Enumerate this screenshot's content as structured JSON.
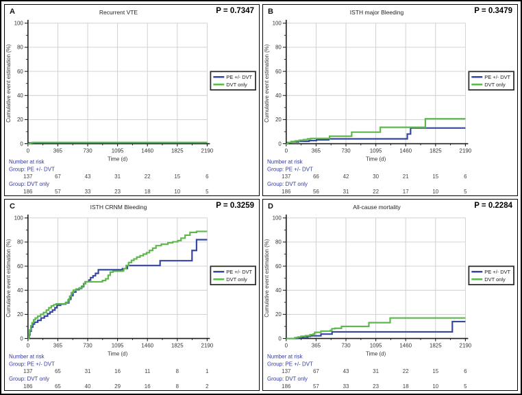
{
  "shared": {
    "number_at_risk_label": "Number at risk",
    "colors": {
      "pe_dvt_blue": "#3646a0",
      "dvt_only_green": "#5cb84b",
      "grid": "#cccccc",
      "axis": "#1a1a1a",
      "tick_text": "#333333",
      "risk_label_navy": "#333a9e",
      "risk_value": "#444444",
      "legend_border": "#2e2e2e"
    },
    "legend_labels": [
      "PE +/- DVT",
      "DVT only"
    ]
  },
  "chart_data": [
    {
      "type": "line",
      "step": true,
      "letter": "A",
      "title": "Recurrent VTE",
      "p_value": "P = 0.7347",
      "xlabel": "Time (d)",
      "ylabel": "Cumulative event estimation (%)",
      "xlim": [
        0,
        2190
      ],
      "ylim": [
        0,
        100
      ],
      "xticks": [
        0,
        365,
        730,
        1095,
        1460,
        1825,
        2190
      ],
      "yticks": [
        0,
        20,
        40,
        60,
        80,
        100
      ],
      "legend_position": "right",
      "grid": true,
      "series": [
        {
          "name": "PE +/- DVT",
          "color": "#3646a0",
          "step_points": [
            [
              0,
              0
            ],
            [
              15,
              0.7
            ],
            [
              2190,
              0.7
            ]
          ]
        },
        {
          "name": "DVT only",
          "color": "#5cb84b",
          "step_points": [
            [
              0,
              0
            ],
            [
              30,
              0.6
            ],
            [
              55,
              1.1
            ],
            [
              2190,
              1.1
            ]
          ]
        }
      ],
      "number_at_risk": [
        {
          "group": "Group: PE +/- DVT",
          "counts": [
            137,
            67,
            43,
            31,
            22,
            15,
            6
          ]
        },
        {
          "group": "Group: DVT only",
          "counts": [
            186,
            57,
            33,
            23,
            18,
            10,
            5
          ]
        }
      ]
    },
    {
      "type": "line",
      "step": true,
      "letter": "B",
      "title": "ISTH major Bleeding",
      "p_value": "P = 0.3479",
      "xlabel": "Time (d)",
      "ylabel": "Cumulative event estimation (%)",
      "xlim": [
        0,
        2190
      ],
      "ylim": [
        0,
        100
      ],
      "xticks": [
        0,
        365,
        730,
        1095,
        1460,
        1825,
        2190
      ],
      "yticks": [
        0,
        20,
        40,
        60,
        80,
        100
      ],
      "legend_position": "right",
      "grid": true,
      "series": [
        {
          "name": "PE +/- DVT",
          "color": "#3646a0",
          "step_points": [
            [
              0,
              0
            ],
            [
              15,
              0.8
            ],
            [
              60,
              1.5
            ],
            [
              150,
              2.0
            ],
            [
              280,
              2.6
            ],
            [
              370,
              3.2
            ],
            [
              520,
              4.0
            ],
            [
              1480,
              8.0
            ],
            [
              1520,
              13.0
            ],
            [
              2190,
              13.0
            ]
          ]
        },
        {
          "name": "DVT only",
          "color": "#5cb84b",
          "step_points": [
            [
              0,
              0
            ],
            [
              20,
              1.0
            ],
            [
              60,
              1.8
            ],
            [
              110,
              2.3
            ],
            [
              160,
              2.9
            ],
            [
              210,
              3.4
            ],
            [
              260,
              4.0
            ],
            [
              300,
              4.4
            ],
            [
              530,
              6.2
            ],
            [
              800,
              9.6
            ],
            [
              1150,
              13.6
            ],
            [
              1700,
              20.7
            ],
            [
              2190,
              20.7
            ]
          ]
        }
      ],
      "number_at_risk": [
        {
          "group": "Group: PE +/- DVT",
          "counts": [
            137,
            66,
            42,
            30,
            21,
            15,
            6
          ]
        },
        {
          "group": "Group: DVT only",
          "counts": [
            186,
            56,
            31,
            22,
            17,
            10,
            5
          ]
        }
      ]
    },
    {
      "type": "line",
      "step": true,
      "letter": "C",
      "title": "ISTH CRNM Bleeding",
      "p_value": "P = 0.3259",
      "xlabel": "Time (d)",
      "ylabel": "Cumulative event estimation (%)",
      "xlim": [
        0,
        2190
      ],
      "ylim": [
        0,
        100
      ],
      "xticks": [
        0,
        365,
        730,
        1095,
        1460,
        1825,
        2190
      ],
      "yticks": [
        0,
        20,
        40,
        60,
        80,
        100
      ],
      "legend_position": "right",
      "grid": true,
      "series": [
        {
          "name": "PE +/- DVT",
          "color": "#3646a0",
          "step_points": [
            [
              0,
              0
            ],
            [
              15,
              3
            ],
            [
              25,
              6
            ],
            [
              40,
              9.5
            ],
            [
              60,
              12
            ],
            [
              80,
              13.5
            ],
            [
              120,
              15
            ],
            [
              160,
              17
            ],
            [
              200,
              18.5
            ],
            [
              240,
              20.5
            ],
            [
              270,
              22
            ],
            [
              300,
              23.5
            ],
            [
              330,
              25.5
            ],
            [
              355,
              27.5
            ],
            [
              400,
              28.5
            ],
            [
              460,
              29.5
            ],
            [
              500,
              32.5
            ],
            [
              525,
              35.5
            ],
            [
              550,
              38.5
            ],
            [
              585,
              40.5
            ],
            [
              625,
              41.5
            ],
            [
              655,
              43
            ],
            [
              680,
              45.5
            ],
            [
              700,
              47
            ],
            [
              745,
              48.5
            ],
            [
              765,
              50.5
            ],
            [
              795,
              52
            ],
            [
              825,
              54
            ],
            [
              860,
              57
            ],
            [
              1155,
              58
            ],
            [
              1215,
              60.5
            ],
            [
              1615,
              64.5
            ],
            [
              2005,
              73
            ],
            [
              2060,
              82
            ],
            [
              2190,
              82
            ]
          ]
        },
        {
          "name": "DVT only",
          "color": "#5cb84b",
          "step_points": [
            [
              0,
              0
            ],
            [
              12,
              3.5
            ],
            [
              22,
              7
            ],
            [
              35,
              10.5
            ],
            [
              50,
              13
            ],
            [
              70,
              15.5
            ],
            [
              90,
              17
            ],
            [
              120,
              18.5
            ],
            [
              155,
              20
            ],
            [
              190,
              21.5
            ],
            [
              225,
              23.5
            ],
            [
              255,
              25.5
            ],
            [
              285,
              27
            ],
            [
              315,
              28
            ],
            [
              345,
              28.7
            ],
            [
              465,
              30
            ],
            [
              490,
              32
            ],
            [
              510,
              35
            ],
            [
              530,
              38
            ],
            [
              555,
              40
            ],
            [
              590,
              41
            ],
            [
              630,
              42
            ],
            [
              660,
              43.5
            ],
            [
              685,
              45.5
            ],
            [
              705,
              47
            ],
            [
              910,
              48
            ],
            [
              950,
              49.5
            ],
            [
              980,
              52.5
            ],
            [
              1005,
              55
            ],
            [
              1040,
              55.8
            ],
            [
              1150,
              56
            ],
            [
              1170,
              58
            ],
            [
              1200,
              60.5
            ],
            [
              1230,
              63
            ],
            [
              1265,
              64.8
            ],
            [
              1295,
              66
            ],
            [
              1330,
              67.5
            ],
            [
              1370,
              68.7
            ],
            [
              1410,
              70
            ],
            [
              1450,
              71.2
            ],
            [
              1485,
              73
            ],
            [
              1525,
              75
            ],
            [
              1565,
              77
            ],
            [
              1630,
              78.2
            ],
            [
              1710,
              79.5
            ],
            [
              1770,
              80.2
            ],
            [
              1830,
              81.2
            ],
            [
              1870,
              83.2
            ],
            [
              1920,
              85.7
            ],
            [
              1980,
              88
            ],
            [
              2060,
              88.8
            ],
            [
              2190,
              88.8
            ]
          ]
        }
      ],
      "number_at_risk": [
        {
          "group": "Group: PE +/- DVT",
          "counts": [
            137,
            65,
            31,
            16,
            11,
            8,
            1
          ]
        },
        {
          "group": "Group: DVT only",
          "counts": [
            186,
            65,
            40,
            29,
            16,
            8,
            2
          ]
        }
      ]
    },
    {
      "type": "line",
      "step": true,
      "letter": "D",
      "title": "All-cause mortality",
      "p_value": "P = 0.2284",
      "xlabel": "Time (d)",
      "ylabel": "Cumulative event estimation (%)",
      "xlim": [
        0,
        2190
      ],
      "ylim": [
        0,
        100
      ],
      "xticks": [
        0,
        365,
        730,
        1095,
        1460,
        1825,
        2190
      ],
      "yticks": [
        0,
        20,
        40,
        60,
        80,
        100
      ],
      "legend_position": "right",
      "grid": true,
      "series": [
        {
          "name": "PE +/- DVT",
          "color": "#3646a0",
          "step_points": [
            [
              0,
              0
            ],
            [
              150,
              0.8
            ],
            [
              210,
              1.2
            ],
            [
              265,
              1.7
            ],
            [
              295,
              2.2
            ],
            [
              425,
              3.6
            ],
            [
              560,
              5.5
            ],
            [
              2030,
              14
            ],
            [
              2190,
              14
            ]
          ]
        },
        {
          "name": "DVT only",
          "color": "#5cb84b",
          "step_points": [
            [
              0,
              0
            ],
            [
              105,
              0.7
            ],
            [
              140,
              1.2
            ],
            [
              180,
              1.8
            ],
            [
              235,
              2.3
            ],
            [
              290,
              3.1
            ],
            [
              330,
              3.7
            ],
            [
              348,
              5.1
            ],
            [
              425,
              6.1
            ],
            [
              540,
              6.7
            ],
            [
              558,
              8.1
            ],
            [
              595,
              8.4
            ],
            [
              675,
              10
            ],
            [
              1010,
              13.1
            ],
            [
              1270,
              17
            ],
            [
              2190,
              17
            ]
          ]
        }
      ],
      "number_at_risk": [
        {
          "group": "Group: PE +/- DVT",
          "counts": [
            137,
            67,
            43,
            31,
            22,
            15,
            6
          ]
        },
        {
          "group": "Group: DVT only",
          "counts": [
            186,
            57,
            33,
            23,
            18,
            10,
            5
          ]
        }
      ]
    }
  ]
}
